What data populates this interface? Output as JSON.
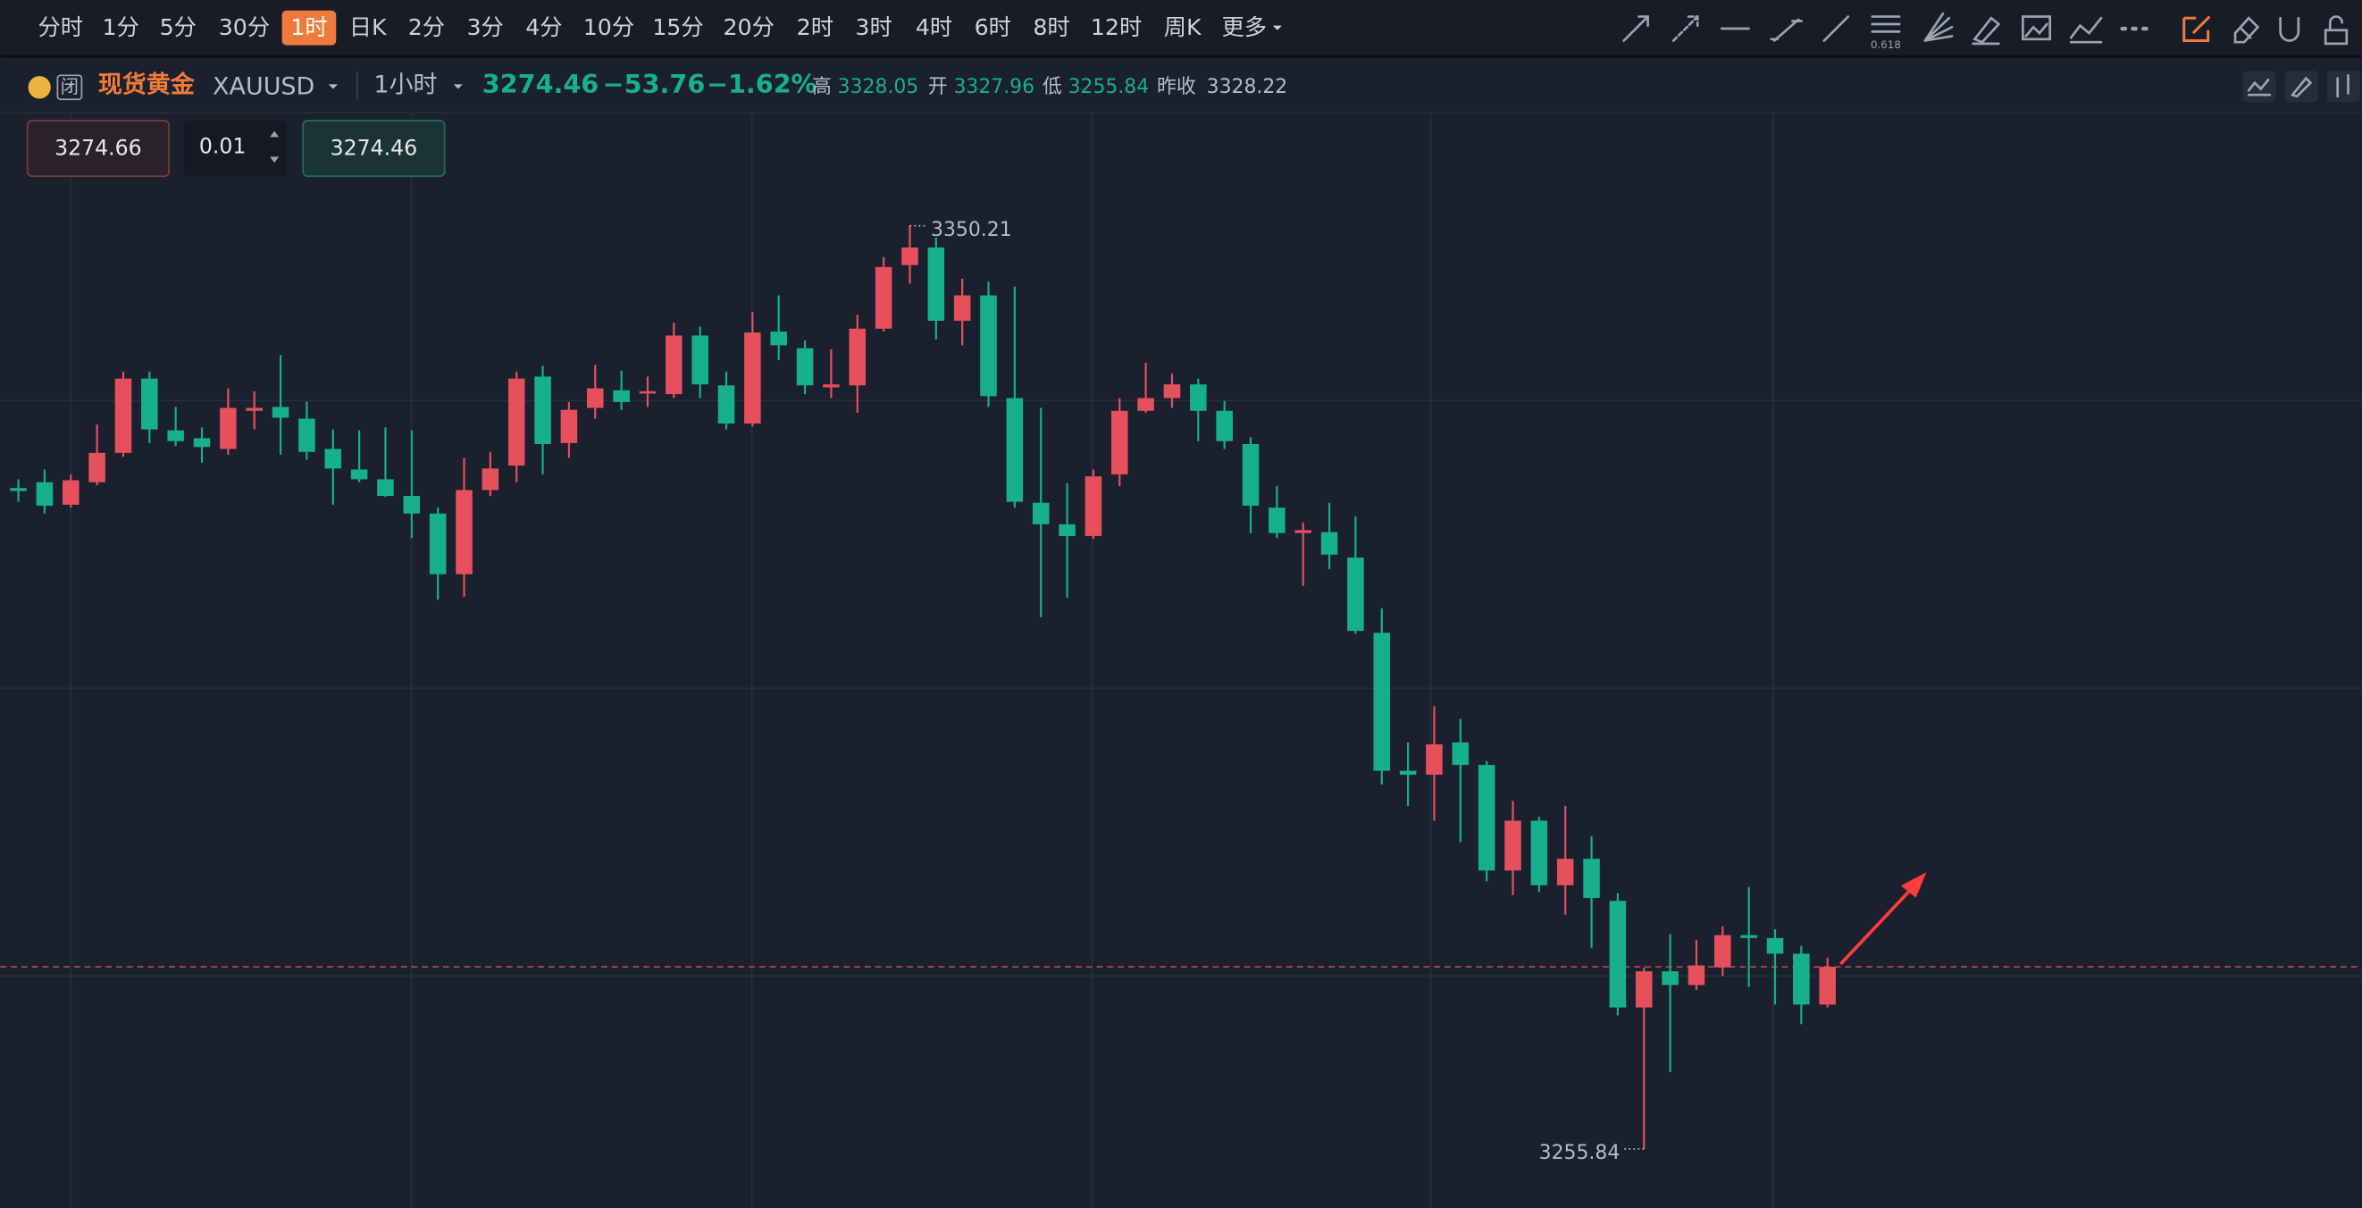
{
  "toolbar": {
    "periods": [
      "分时",
      "1分",
      "5分",
      "30分",
      "1时",
      "日K",
      "2分",
      "3分",
      "4分",
      "10分",
      "15分",
      "20分",
      "2时",
      "3时",
      "4时",
      "6时",
      "8时",
      "12时",
      "周K",
      "更多"
    ],
    "active_index": 4,
    "fib_label": "0.618"
  },
  "quote": {
    "badge": "闭",
    "name": "现货黄金",
    "symbol": "XAUUSD",
    "interval": "1小时",
    "price": 3274.46,
    "change": "−53.76",
    "change_pct": "−1.62%",
    "high_label": "高",
    "high": 3328.05,
    "open_label": "开",
    "open": 3327.96,
    "low_label": "低",
    "low": 3255.84,
    "prev_label": "昨收",
    "prev_close": 3328.22
  },
  "order": {
    "sell": 3274.66,
    "quantity": 0.01,
    "buy": 3274.46
  },
  "chart_data": {
    "type": "candlestick",
    "up_color": "#e5505c",
    "down_color": "#16b08e",
    "ylim": [
      3249.8,
      3361.75
    ],
    "open": [
      3323.4,
      3324.0,
      3321.7,
      3324.0,
      3327.0,
      3334.6,
      3329.3,
      3328.5,
      3327.4,
      3331.3,
      3331.7,
      3330.5,
      3327.4,
      3325.3,
      3324.3,
      3322.6,
      3320.8,
      3314.6,
      3323.2,
      3325.7,
      3334.8,
      3328.0,
      3331.6,
      3333.4,
      3333.1,
      3333.0,
      3339.0,
      3333.9,
      3330.0,
      3339.4,
      3337.7,
      3333.7,
      3333.9,
      3339.7,
      3346.2,
      3348.0,
      3340.5,
      3343.1,
      3332.6,
      3321.9,
      3319.7,
      3318.5,
      3324.8,
      3331.3,
      3332.6,
      3334.0,
      3331.3,
      3327.9,
      3321.4,
      3318.8,
      3318.9,
      3316.3,
      3308.6,
      3294.5,
      3294.1,
      3297.4,
      3295.1,
      3284.3,
      3289.4,
      3282.8,
      3285.5,
      3281.2,
      3270.3,
      3274.0,
      3272.6,
      3274.4,
      3277.7,
      3277.4,
      3275.8,
      3270.6
    ],
    "high": [
      3324.3,
      3325.3,
      3324.8,
      3329.9,
      3335.3,
      3335.3,
      3331.7,
      3329.6,
      3333.6,
      3333.3,
      3337.0,
      3332.2,
      3329.4,
      3329.3,
      3329.6,
      3329.3,
      3321.4,
      3326.5,
      3327.1,
      3335.3,
      3335.9,
      3332.2,
      3336.0,
      3335.4,
      3334.8,
      3340.3,
      3339.9,
      3335.3,
      3341.4,
      3343.1,
      3338.5,
      3337.6,
      3341.1,
      3347.0,
      3350.21,
      3349.0,
      3344.8,
      3344.5,
      3344.0,
      3331.6,
      3323.9,
      3325.3,
      3332.6,
      3336.2,
      3335.1,
      3334.6,
      3332.3,
      3328.6,
      3323.6,
      3319.9,
      3321.9,
      3320.5,
      3311.1,
      3297.4,
      3301.1,
      3299.8,
      3295.5,
      3291.4,
      3289.8,
      3290.9,
      3287.8,
      3282.0,
      3274.4,
      3277.8,
      3277.2,
      3278.6,
      3282.6,
      3278.3,
      3276.6,
      3275.4
    ],
    "low": [
      3322.0,
      3320.8,
      3321.4,
      3323.7,
      3326.6,
      3328.0,
      3327.7,
      3326.0,
      3326.8,
      3329.4,
      3326.8,
      3326.3,
      3321.7,
      3324.0,
      3322.5,
      3318.3,
      3312.0,
      3312.3,
      3322.6,
      3324.0,
      3324.8,
      3326.5,
      3330.5,
      3331.4,
      3331.7,
      3332.6,
      3332.6,
      3329.4,
      3329.7,
      3336.5,
      3333.0,
      3332.6,
      3331.1,
      3339.4,
      3344.3,
      3338.6,
      3338.0,
      3331.7,
      3321.4,
      3310.2,
      3312.2,
      3318.2,
      3323.6,
      3331.1,
      3331.6,
      3328.2,
      3327.4,
      3318.8,
      3318.3,
      3313.4,
      3315.1,
      3308.5,
      3293.1,
      3290.9,
      3289.4,
      3287.2,
      3283.2,
      3281.8,
      3282.1,
      3279.8,
      3276.4,
      3269.5,
      3255.84,
      3263.7,
      3272.1,
      3273.5,
      3272.4,
      3270.6,
      3268.6,
      3270.3
    ],
    "close": [
      3323.1,
      3321.6,
      3324.2,
      3327.0,
      3334.6,
      3329.4,
      3328.2,
      3327.6,
      3331.6,
      3331.6,
      3330.6,
      3327.1,
      3325.4,
      3324.3,
      3322.6,
      3320.8,
      3314.6,
      3323.2,
      3325.4,
      3334.6,
      3327.9,
      3331.4,
      3333.6,
      3332.2,
      3333.3,
      3339.0,
      3334.0,
      3330.0,
      3339.3,
      3338.0,
      3333.9,
      3334.0,
      3339.7,
      3346.0,
      3348.0,
      3340.5,
      3343.1,
      3332.8,
      3322.0,
      3319.7,
      3318.5,
      3324.6,
      3331.3,
      3332.6,
      3334.0,
      3331.3,
      3328.2,
      3321.6,
      3318.8,
      3319.1,
      3316.6,
      3308.8,
      3294.5,
      3294.1,
      3297.2,
      3295.1,
      3284.3,
      3289.4,
      3282.8,
      3285.5,
      3281.5,
      3270.3,
      3274.0,
      3272.6,
      3274.6,
      3277.7,
      3277.4,
      3275.8,
      3270.6,
      3274.46
    ]
  }
}
